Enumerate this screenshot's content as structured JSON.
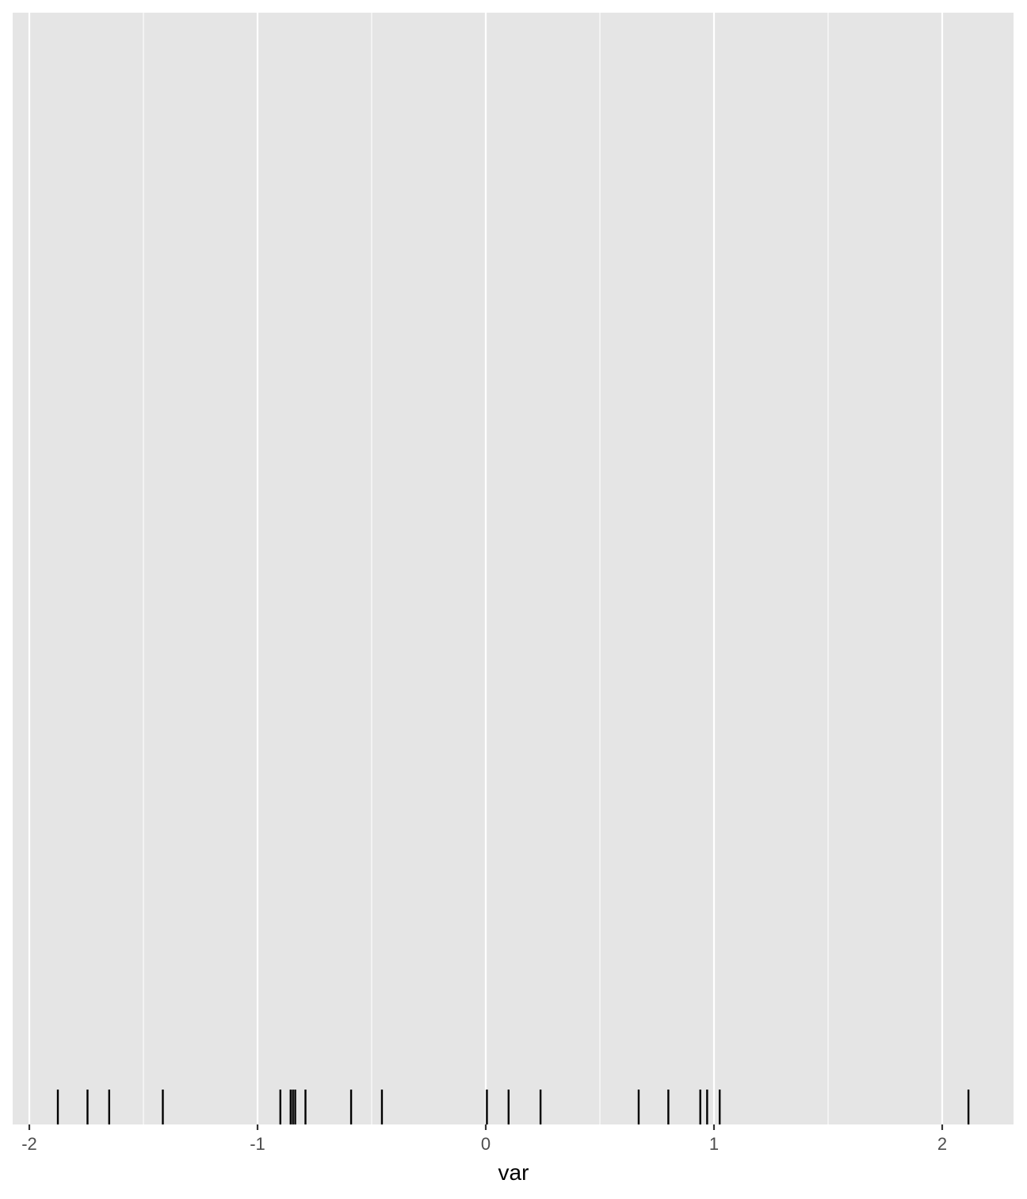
{
  "chart_data": {
    "type": "rug",
    "title": "",
    "xlabel": "var",
    "ylabel": "",
    "xlim": [
      -2.075,
      2.32
    ],
    "x_ticks": [
      -2,
      -1,
      0,
      1,
      2
    ],
    "x_tick_labels": [
      "-2",
      "-1",
      "0",
      "1",
      "2"
    ],
    "minor_grid_x": [
      -1.5,
      -0.5,
      0.5,
      1.5
    ],
    "grid": true,
    "legend": "none",
    "values": [
      -1.875,
      -1.745,
      -1.65,
      -1.415,
      -0.9,
      -0.855,
      -0.845,
      -0.835,
      -0.79,
      -0.59,
      -0.455,
      0.005,
      0.1,
      0.24,
      0.67,
      0.8,
      0.94,
      0.97,
      1.025,
      2.115
    ],
    "colors": {
      "panel_background": "#e5e5e5",
      "grid_line": "#ffffff",
      "rug": "#000000",
      "tick_label": "#4d4d4d",
      "axis_tick": "#333333"
    }
  }
}
